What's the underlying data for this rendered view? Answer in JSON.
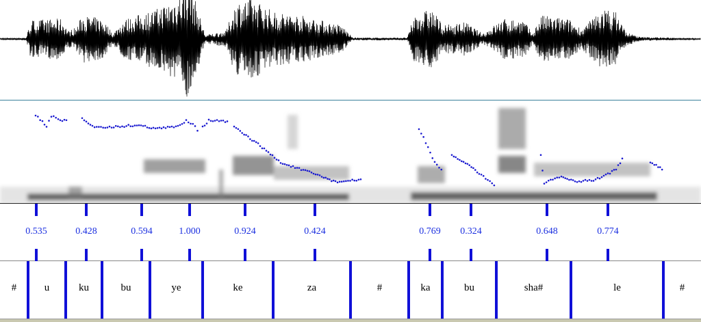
{
  "chart_data": {
    "type": "table",
    "title": "",
    "prominence_tier": {
      "values": [
        "0.535",
        "0.428",
        "0.594",
        "1.000",
        "0.924",
        "0.424",
        "0.769",
        "0.324",
        "0.648",
        "0.774"
      ]
    },
    "syllable_tier": {
      "labels": [
        "#",
        "u",
        "ku",
        "bu",
        "ye",
        "ke",
        "za",
        "#",
        "ka",
        "bu",
        "sha#",
        "le",
        "#"
      ]
    },
    "colors": {
      "annotation": "#1010d8",
      "pitch": "#1a1ad0",
      "waveform": "#000000"
    }
  }
}
